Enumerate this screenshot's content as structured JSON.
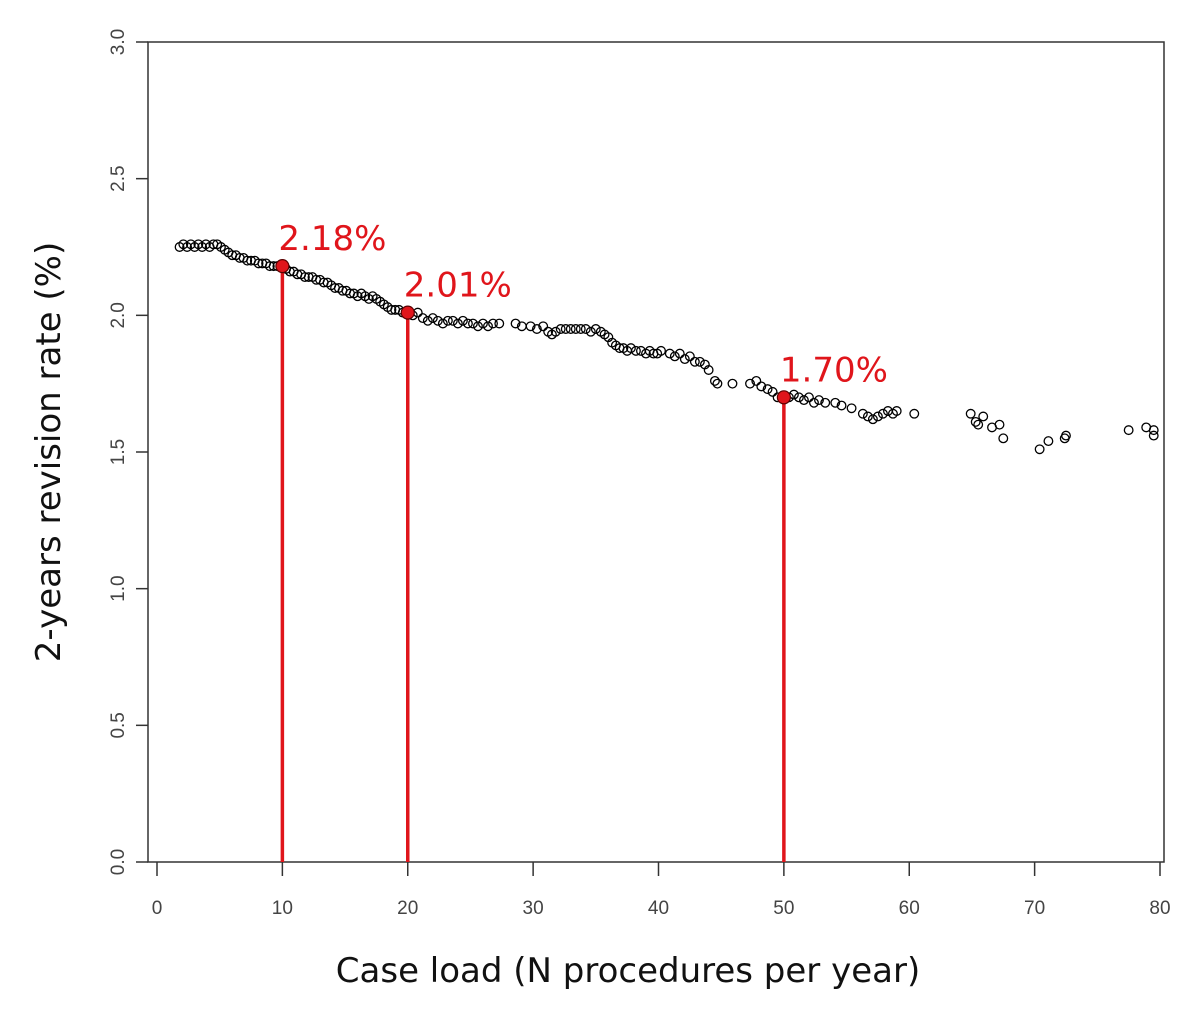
{
  "chart_data": {
    "type": "scatter",
    "title": "",
    "xlabel": "Case load (N procedures per year)",
    "ylabel": "2-years revision rate (%)",
    "xlim": [
      0,
      80
    ],
    "ylim": [
      0.0,
      3.0
    ],
    "x_ticks": [
      0,
      10,
      20,
      30,
      40,
      50,
      60,
      70,
      80
    ],
    "x_tick_labels": [
      "0",
      "10",
      "20",
      "30",
      "40",
      "50",
      "60",
      "70",
      "80"
    ],
    "y_ticks": [
      0.0,
      0.5,
      1.0,
      1.5,
      2.0,
      2.5,
      3.0
    ],
    "y_tick_labels": [
      "0.0",
      "0.5",
      "1.0",
      "1.5",
      "2.0",
      "2.5",
      "3.0"
    ],
    "grid": false,
    "legend": "none",
    "marker_color": "#000000",
    "highlight_color": "#e0151b",
    "series": [
      {
        "name": "observations",
        "marker": "open-circle",
        "points": [
          [
            1.8,
            2.25
          ],
          [
            2.1,
            2.26
          ],
          [
            2.4,
            2.25
          ],
          [
            2.7,
            2.26
          ],
          [
            3.0,
            2.25
          ],
          [
            3.3,
            2.26
          ],
          [
            3.6,
            2.25
          ],
          [
            3.9,
            2.26
          ],
          [
            4.2,
            2.25
          ],
          [
            4.5,
            2.26
          ],
          [
            4.8,
            2.26
          ],
          [
            5.1,
            2.25
          ],
          [
            5.4,
            2.24
          ],
          [
            5.7,
            2.23
          ],
          [
            6.0,
            2.22
          ],
          [
            6.3,
            2.22
          ],
          [
            6.6,
            2.21
          ],
          [
            6.9,
            2.21
          ],
          [
            7.2,
            2.2
          ],
          [
            7.5,
            2.2
          ],
          [
            7.8,
            2.2
          ],
          [
            8.1,
            2.19
          ],
          [
            8.4,
            2.19
          ],
          [
            8.7,
            2.19
          ],
          [
            9.0,
            2.18
          ],
          [
            9.3,
            2.18
          ],
          [
            9.6,
            2.18
          ],
          [
            10.3,
            2.17
          ],
          [
            10.6,
            2.16
          ],
          [
            10.9,
            2.16
          ],
          [
            11.2,
            2.15
          ],
          [
            11.5,
            2.15
          ],
          [
            11.8,
            2.14
          ],
          [
            12.1,
            2.14
          ],
          [
            12.4,
            2.14
          ],
          [
            12.7,
            2.13
          ],
          [
            13.0,
            2.13
          ],
          [
            13.3,
            2.12
          ],
          [
            13.6,
            2.12
          ],
          [
            13.9,
            2.11
          ],
          [
            14.2,
            2.1
          ],
          [
            14.5,
            2.1
          ],
          [
            14.8,
            2.09
          ],
          [
            15.1,
            2.09
          ],
          [
            15.4,
            2.08
          ],
          [
            15.7,
            2.08
          ],
          [
            16.0,
            2.07
          ],
          [
            16.3,
            2.08
          ],
          [
            16.6,
            2.07
          ],
          [
            16.9,
            2.06
          ],
          [
            17.2,
            2.07
          ],
          [
            17.5,
            2.06
          ],
          [
            17.8,
            2.05
          ],
          [
            18.1,
            2.04
          ],
          [
            18.4,
            2.03
          ],
          [
            18.7,
            2.02
          ],
          [
            19.0,
            2.02
          ],
          [
            19.3,
            2.02
          ],
          [
            19.6,
            2.01
          ],
          [
            20.4,
            2.0
          ],
          [
            20.8,
            2.01
          ],
          [
            21.2,
            1.99
          ],
          [
            21.6,
            1.98
          ],
          [
            22.0,
            1.99
          ],
          [
            22.4,
            1.98
          ],
          [
            22.8,
            1.97
          ],
          [
            23.2,
            1.98
          ],
          [
            23.6,
            1.98
          ],
          [
            24.0,
            1.97
          ],
          [
            24.4,
            1.98
          ],
          [
            24.8,
            1.97
          ],
          [
            25.2,
            1.97
          ],
          [
            25.6,
            1.96
          ],
          [
            26.0,
            1.97
          ],
          [
            26.4,
            1.96
          ],
          [
            26.8,
            1.97
          ],
          [
            27.3,
            1.97
          ],
          [
            28.6,
            1.97
          ],
          [
            29.1,
            1.96
          ],
          [
            29.8,
            1.96
          ],
          [
            30.3,
            1.95
          ],
          [
            30.8,
            1.96
          ],
          [
            31.2,
            1.94
          ],
          [
            31.5,
            1.93
          ],
          [
            31.8,
            1.94
          ],
          [
            32.2,
            1.95
          ],
          [
            32.6,
            1.95
          ],
          [
            33.0,
            1.95
          ],
          [
            33.4,
            1.95
          ],
          [
            33.8,
            1.95
          ],
          [
            34.2,
            1.95
          ],
          [
            34.6,
            1.94
          ],
          [
            35.0,
            1.95
          ],
          [
            35.4,
            1.94
          ],
          [
            35.7,
            1.93
          ],
          [
            36.0,
            1.92
          ],
          [
            36.3,
            1.9
          ],
          [
            36.6,
            1.89
          ],
          [
            36.9,
            1.88
          ],
          [
            37.2,
            1.88
          ],
          [
            37.5,
            1.87
          ],
          [
            37.8,
            1.88
          ],
          [
            38.2,
            1.87
          ],
          [
            38.6,
            1.87
          ],
          [
            39.0,
            1.86
          ],
          [
            39.3,
            1.87
          ],
          [
            39.6,
            1.86
          ],
          [
            39.9,
            1.86
          ],
          [
            40.2,
            1.87
          ],
          [
            40.9,
            1.86
          ],
          [
            41.3,
            1.85
          ],
          [
            41.7,
            1.86
          ],
          [
            42.1,
            1.84
          ],
          [
            42.5,
            1.85
          ],
          [
            42.9,
            1.83
          ],
          [
            43.3,
            1.83
          ],
          [
            43.7,
            1.82
          ],
          [
            44.0,
            1.8
          ],
          [
            44.5,
            1.76
          ],
          [
            44.7,
            1.75
          ],
          [
            45.9,
            1.75
          ],
          [
            47.3,
            1.75
          ],
          [
            47.8,
            1.76
          ],
          [
            48.2,
            1.74
          ],
          [
            48.7,
            1.73
          ],
          [
            49.1,
            1.72
          ],
          [
            49.5,
            1.7
          ],
          [
            50.4,
            1.7
          ],
          [
            50.8,
            1.71
          ],
          [
            51.2,
            1.7
          ],
          [
            51.6,
            1.69
          ],
          [
            52.0,
            1.7
          ],
          [
            52.4,
            1.68
          ],
          [
            52.8,
            1.69
          ],
          [
            53.3,
            1.68
          ],
          [
            54.1,
            1.68
          ],
          [
            54.6,
            1.67
          ],
          [
            55.4,
            1.66
          ],
          [
            56.3,
            1.64
          ],
          [
            56.7,
            1.63
          ],
          [
            57.1,
            1.62
          ],
          [
            57.5,
            1.63
          ],
          [
            57.9,
            1.64
          ],
          [
            58.3,
            1.65
          ],
          [
            58.7,
            1.64
          ],
          [
            59.0,
            1.65
          ],
          [
            60.4,
            1.64
          ],
          [
            64.9,
            1.64
          ],
          [
            65.3,
            1.61
          ],
          [
            65.5,
            1.6
          ],
          [
            65.9,
            1.63
          ],
          [
            66.6,
            1.59
          ],
          [
            67.2,
            1.6
          ],
          [
            67.5,
            1.55
          ],
          [
            70.4,
            1.51
          ],
          [
            71.1,
            1.54
          ],
          [
            72.4,
            1.55
          ],
          [
            72.5,
            1.56
          ],
          [
            77.5,
            1.58
          ],
          [
            78.9,
            1.59
          ],
          [
            79.5,
            1.56
          ],
          [
            79.5,
            1.58
          ]
        ]
      }
    ],
    "highlights": [
      {
        "x": 10,
        "y": 2.18,
        "label": "2.18%"
      },
      {
        "x": 20,
        "y": 2.01,
        "label": "2.01%"
      },
      {
        "x": 50,
        "y": 1.7,
        "label": "1.70%"
      }
    ]
  }
}
